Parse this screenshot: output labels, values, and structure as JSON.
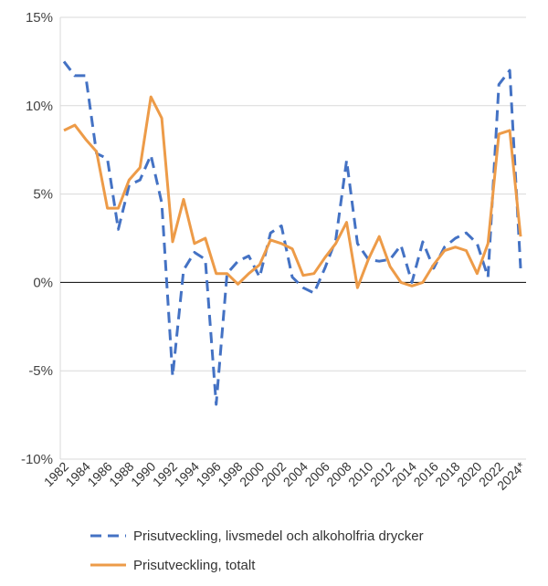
{
  "chart_data": {
    "type": "line",
    "title": "",
    "xlabel": "",
    "ylabel": "",
    "ylim": [
      -10,
      15
    ],
    "yticks": [
      {
        "value": 15,
        "label": "15%"
      },
      {
        "value": 10,
        "label": "10%"
      },
      {
        "value": 5,
        "label": "5%"
      },
      {
        "value": 0,
        "label": "0%"
      },
      {
        "value": -5,
        "label": "-5%"
      },
      {
        "value": -10,
        "label": "-10%"
      }
    ],
    "grid": true,
    "legend_position": "bottom",
    "x": [
      "1982",
      "1983",
      "1984",
      "1985",
      "1986",
      "1987",
      "1988",
      "1989",
      "1990",
      "1991",
      "1992",
      "1993",
      "1994",
      "1995",
      "1996",
      "1997",
      "1998",
      "1999",
      "2000",
      "2001",
      "2002",
      "2003",
      "2004",
      "2005",
      "2006",
      "2007",
      "2008",
      "2009",
      "2010",
      "2011",
      "2012",
      "2013",
      "2014",
      "2015",
      "2016",
      "2017",
      "2018",
      "2019",
      "2020",
      "2021",
      "2022",
      "2023",
      "2024*"
    ],
    "x_tick_labels": [
      "1982",
      "1984",
      "1986",
      "1988",
      "1990",
      "1992",
      "1994",
      "1996",
      "1998",
      "2000",
      "2002",
      "2004",
      "2006",
      "2008",
      "2010",
      "2012",
      "2014",
      "2016",
      "2018",
      "2020",
      "2022",
      "2024*"
    ],
    "series": [
      {
        "name": "Prisutveckling, livsmedel och alkoholfria drycker",
        "color": "#4472C4",
        "style": "dashed",
        "values": [
          12.5,
          11.7,
          11.7,
          7.3,
          7.0,
          3.0,
          5.5,
          5.8,
          7.2,
          4.5,
          -5.3,
          0.7,
          1.7,
          1.3,
          -6.9,
          0.5,
          1.2,
          1.5,
          0.3,
          2.8,
          3.2,
          0.3,
          -0.3,
          -0.6,
          0.8,
          2.4,
          6.9,
          2.2,
          1.3,
          1.2,
          1.3,
          2.1,
          0.0,
          2.3,
          0.8,
          2.0,
          2.5,
          2.8,
          2.2,
          0.3,
          11.2,
          12.0,
          0.8
        ]
      },
      {
        "name": "Prisutveckling, totalt",
        "color": "#ED9B48",
        "style": "solid",
        "values": [
          8.6,
          8.9,
          8.1,
          7.4,
          4.2,
          4.2,
          5.8,
          6.5,
          10.5,
          9.3,
          2.3,
          4.7,
          2.2,
          2.5,
          0.5,
          0.5,
          -0.1,
          0.5,
          1.0,
          2.4,
          2.2,
          1.9,
          0.4,
          0.5,
          1.4,
          2.2,
          3.4,
          -0.3,
          1.3,
          2.6,
          0.9,
          0.0,
          -0.2,
          0.0,
          1.0,
          1.8,
          2.0,
          1.8,
          0.5,
          2.2,
          8.4,
          8.6,
          2.6
        ]
      }
    ]
  }
}
